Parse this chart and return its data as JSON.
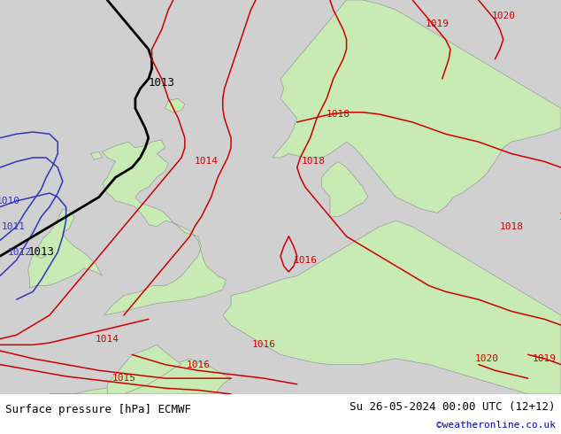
{
  "title_left": "Surface pressure [hPa] ECMWF",
  "title_right": "Su 26-05-2024 00:00 UTC (12+12)",
  "credit": "©weatheronline.co.uk",
  "bg_color": "#d0d0d0",
  "land_color": "#c8eab4",
  "border_color": "#999999",
  "bottom_bar_color": "#ffffff",
  "isobar_red_color": "#cc0000",
  "isobar_blue_color": "#3333bb",
  "isobar_black_color": "#000000",
  "label_fontsize": 8,
  "title_fontsize": 9,
  "credit_fontsize": 8,
  "credit_color": "#0000cc",
  "xlim": [
    -12,
    22
  ],
  "ylim": [
    46,
    66
  ]
}
